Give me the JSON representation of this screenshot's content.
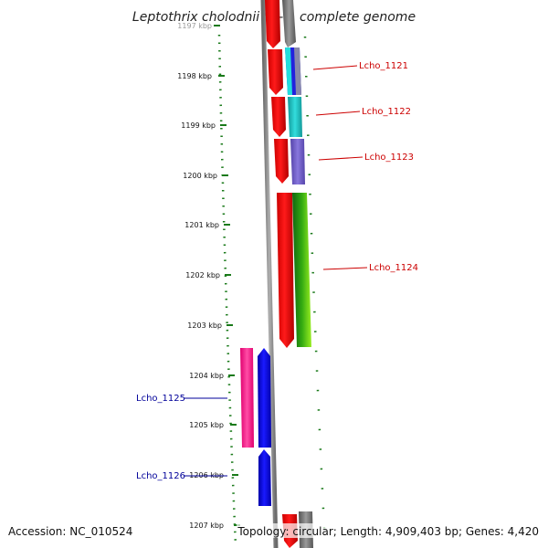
{
  "title": "Leptothrix cholodnii SP-6, complete genome",
  "footer": {
    "accession": "Accession: NC_010524",
    "topology": "Topology: circular; Length: 4,909,403 bp; Genes: 4,420"
  },
  "ticks": [
    "1197 kbp",
    "1198 kbp",
    "1199 kbp",
    "1200 kbp",
    "1201 kbp",
    "1202 kbp",
    "1203 kbp",
    "1204 kbp",
    "1205 kbp",
    "1206 kbp",
    "1207 kbp"
  ],
  "genes": {
    "lcho_1121": "Lcho_1121",
    "lcho_1122": "Lcho_1122",
    "lcho_1123": "Lcho_1123",
    "lcho_1124": "Lcho_1124",
    "lcho_1125": "Lcho_1125",
    "lcho_1126": "Lcho_1126"
  },
  "colors": {
    "right_label": "#cc0000",
    "left_label": "#000099",
    "ruler": "#1a7a1a",
    "backbone": "#7f7f7f",
    "forward": "#ff0000",
    "reverse": "#0000ee",
    "pink": "#ff3399",
    "cyan": "#22cccc",
    "violet": "#7766cc",
    "green": "#33aa11"
  }
}
